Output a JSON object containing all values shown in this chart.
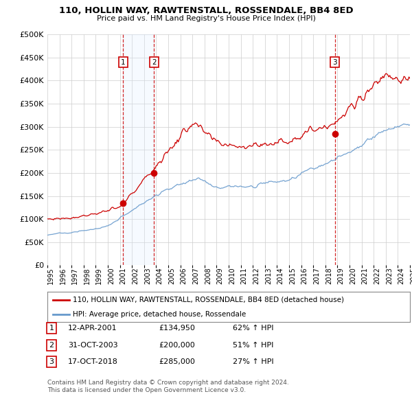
{
  "title": "110, HOLLIN WAY, RAWTENSTALL, ROSSENDALE, BB4 8ED",
  "subtitle": "Price paid vs. HM Land Registry's House Price Index (HPI)",
  "transactions": [
    {
      "num": 1,
      "date": "12-APR-2001",
      "date_x": 2001.27,
      "price": 134950,
      "pct": "62%",
      "dir": "↑"
    },
    {
      "num": 2,
      "date": "31-OCT-2003",
      "date_x": 2003.83,
      "price": 200000,
      "pct": "51%",
      "dir": "↑"
    },
    {
      "num": 3,
      "date": "17-OCT-2018",
      "date_x": 2018.79,
      "price": 285000,
      "pct": "27%",
      "dir": "↑"
    }
  ],
  "legend_house": "110, HOLLIN WAY, RAWTENSTALL, ROSSENDALE, BB4 8ED (detached house)",
  "legend_hpi": "HPI: Average price, detached house, Rossendale",
  "footer1": "Contains HM Land Registry data © Crown copyright and database right 2024.",
  "footer2": "This data is licensed under the Open Government Licence v3.0.",
  "house_color": "#cc0000",
  "hpi_color": "#6699cc",
  "shade_color": "#ddeeff",
  "grid_color": "#cccccc",
  "ylim": [
    0,
    500000
  ],
  "xlim_start": 1995,
  "xlim_end": 2025,
  "hpi_waypoints_x": [
    1995,
    1997,
    2000,
    2004,
    2007.5,
    2009,
    2012,
    2015,
    2018,
    2021,
    2024,
    2025
  ],
  "hpi_waypoints_y": [
    65000,
    72000,
    88000,
    160000,
    200000,
    175000,
    175000,
    185000,
    225000,
    260000,
    300000,
    305000
  ],
  "house_waypoints_x": [
    1995,
    1997,
    1999,
    2001,
    2004,
    2007,
    2009,
    2011,
    2013,
    2015,
    2017,
    2019,
    2021,
    2023,
    2024.5,
    2025
  ],
  "house_waypoints_y": [
    100000,
    103000,
    112000,
    125000,
    215000,
    310000,
    265000,
    258000,
    262000,
    270000,
    295000,
    310000,
    365000,
    415000,
    400000,
    395000
  ]
}
